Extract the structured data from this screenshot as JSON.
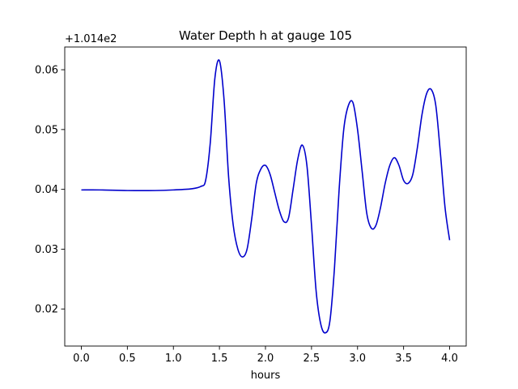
{
  "chart_data": {
    "type": "line",
    "title": "Water Depth h at gauge 105",
    "xlabel": "hours",
    "ylabel": "",
    "offset_label": "+1.014e2",
    "xlim": [
      -0.18,
      4.18
    ],
    "ylim": [
      0.0138,
      0.0638
    ],
    "xticks": [
      0.0,
      0.5,
      1.0,
      1.5,
      2.0,
      2.5,
      3.0,
      3.5,
      4.0
    ],
    "xtick_labels": [
      "0.0",
      "0.5",
      "1.0",
      "1.5",
      "2.0",
      "2.5",
      "3.0",
      "3.5",
      "4.0"
    ],
    "yticks": [
      0.02,
      0.03,
      0.04,
      0.05,
      0.06
    ],
    "ytick_labels": [
      "0.02",
      "0.03",
      "0.04",
      "0.05",
      "0.06"
    ],
    "grid": false,
    "line_color": "#0000cc",
    "series": [
      {
        "x": [
          0.0,
          0.2,
          0.5,
          0.8,
          1.0,
          1.2,
          1.3,
          1.35,
          1.4,
          1.45,
          1.5,
          1.55,
          1.6,
          1.65,
          1.7,
          1.75,
          1.8,
          1.85,
          1.9,
          1.95,
          2.0,
          2.05,
          2.1,
          2.15,
          2.2,
          2.25,
          2.3,
          2.35,
          2.4,
          2.45,
          2.5,
          2.55,
          2.6,
          2.65,
          2.7,
          2.75,
          2.8,
          2.85,
          2.9,
          2.95,
          3.0,
          3.05,
          3.1,
          3.15,
          3.2,
          3.25,
          3.3,
          3.35,
          3.4,
          3.45,
          3.5,
          3.55,
          3.6,
          3.65,
          3.7,
          3.75,
          3.8,
          3.85,
          3.9,
          3.95,
          4.0
        ],
        "y": [
          0.0399,
          0.0399,
          0.0398,
          0.0398,
          0.0399,
          0.0401,
          0.0405,
          0.0415,
          0.0477,
          0.0585,
          0.0615,
          0.055,
          0.042,
          0.034,
          0.03,
          0.0287,
          0.03,
          0.035,
          0.041,
          0.0434,
          0.044,
          0.0425,
          0.0395,
          0.0365,
          0.0346,
          0.0352,
          0.04,
          0.045,
          0.0474,
          0.044,
          0.034,
          0.023,
          0.0175,
          0.016,
          0.018,
          0.027,
          0.04,
          0.05,
          0.054,
          0.0545,
          0.05,
          0.043,
          0.036,
          0.0335,
          0.034,
          0.037,
          0.041,
          0.044,
          0.0453,
          0.044,
          0.0415,
          0.041,
          0.0425,
          0.047,
          0.0525,
          0.056,
          0.0567,
          0.054,
          0.046,
          0.037,
          0.0315
        ]
      }
    ]
  }
}
